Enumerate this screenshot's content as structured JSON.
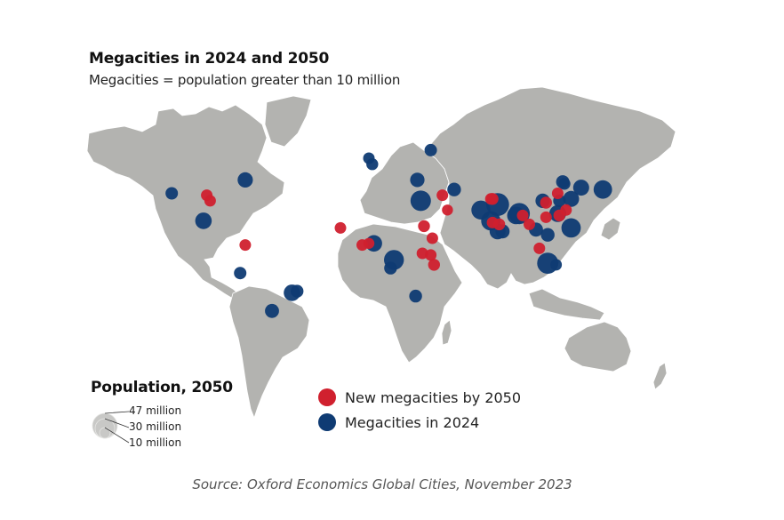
{
  "title": "Megacities in 2024 and 2050",
  "subtitle": "Megacities = population greater than 10 million",
  "colors": {
    "land": "#b3b3b0",
    "border": "#ffffff",
    "new_2050": "#d0202e",
    "existing_2024": "#0f3b73",
    "legend_circle": "#c8c8c6"
  },
  "size_legend": {
    "title": "Population, 2050",
    "labels": [
      "47 million",
      "30 million",
      "10 million"
    ]
  },
  "color_legend": [
    {
      "label": "New megacities by 2050",
      "key": "new_2050"
    },
    {
      "label": "Megacities in 2024",
      "key": "existing_2024"
    }
  ],
  "source": "Source: Oxford Economics Global Cities, November 2023",
  "chart_data": {
    "type": "scatter",
    "title": "Megacities in 2024 and 2050",
    "subtitle": "Megacities = population greater than 10 million",
    "legend": [
      "New megacities by 2050",
      "Megacities in 2024"
    ],
    "size_legend_millions": [
      47,
      30,
      10
    ],
    "points": [
      {
        "region": "North America - Los Angeles",
        "lon": -118,
        "lat": 34,
        "pop_2050_m": 13,
        "category": "existing_2024"
      },
      {
        "region": "North America - New York",
        "lon": -74,
        "lat": 41,
        "pop_2050_m": 20,
        "category": "existing_2024"
      },
      {
        "region": "North America - Dallas",
        "lon": -97,
        "lat": 33,
        "pop_2050_m": 11,
        "category": "new_2050"
      },
      {
        "region": "North America - Houston",
        "lon": -95,
        "lat": 30,
        "pop_2050_m": 11,
        "category": "new_2050"
      },
      {
        "region": "Latin America - Mexico City",
        "lon": -99,
        "lat": 19,
        "pop_2050_m": 24,
        "category": "existing_2024"
      },
      {
        "region": "Latin America - Bogota",
        "lon": -74,
        "lat": 5,
        "pop_2050_m": 11,
        "category": "new_2050"
      },
      {
        "region": "Latin America - Lima",
        "lon": -77,
        "lat": -12,
        "pop_2050_m": 13,
        "category": "existing_2024"
      },
      {
        "region": "Latin America - Rio de Janeiro",
        "lon": -43,
        "lat": -23,
        "pop_2050_m": 14,
        "category": "existing_2024"
      },
      {
        "region": "Latin America - Sao Paulo",
        "lon": -46,
        "lat": -24,
        "pop_2050_m": 24,
        "category": "existing_2024"
      },
      {
        "region": "Latin America - Buenos Aires",
        "lon": -58,
        "lat": -35,
        "pop_2050_m": 17,
        "category": "existing_2024"
      },
      {
        "region": "Europe - London",
        "lon": 0,
        "lat": 52,
        "pop_2050_m": 11,
        "category": "existing_2024"
      },
      {
        "region": "Europe - Paris",
        "lon": 2,
        "lat": 49,
        "pop_2050_m": 12,
        "category": "existing_2024"
      },
      {
        "region": "Europe - Moscow",
        "lon": 37,
        "lat": 56,
        "pop_2050_m": 13,
        "category": "existing_2024"
      },
      {
        "region": "Europe - Istanbul",
        "lon": 29,
        "lat": 41,
        "pop_2050_m": 18,
        "category": "existing_2024"
      },
      {
        "region": "Middle East - Cairo",
        "lon": 31,
        "lat": 30,
        "pop_2050_m": 37,
        "category": "existing_2024"
      },
      {
        "region": "Middle East - Baghdad",
        "lon": 44,
        "lat": 33,
        "pop_2050_m": 11,
        "category": "new_2050"
      },
      {
        "region": "Middle East - Riyadh",
        "lon": 47,
        "lat": 25,
        "pop_2050_m": 10,
        "category": "new_2050"
      },
      {
        "region": "Middle East - Tehran",
        "lon": 51,
        "lat": 36,
        "pop_2050_m": 16,
        "category": "existing_2024"
      },
      {
        "region": "Africa - Khartoum",
        "lon": 33,
        "lat": 16,
        "pop_2050_m": 12,
        "category": "new_2050"
      },
      {
        "region": "Africa - Dakar",
        "lon": -17,
        "lat": 15,
        "pop_2050_m": 11,
        "category": "new_2050"
      },
      {
        "region": "Africa - Abidjan",
        "lon": -4,
        "lat": 5,
        "pop_2050_m": 11,
        "category": "new_2050"
      },
      {
        "region": "Africa - Accra",
        "lon": 0,
        "lat": 6,
        "pop_2050_m": 10,
        "category": "new_2050"
      },
      {
        "region": "Africa - Lagos",
        "lon": 3,
        "lat": 6,
        "pop_2050_m": 24,
        "category": "existing_2024"
      },
      {
        "region": "Africa - Kinshasa",
        "lon": 15,
        "lat": -4,
        "pop_2050_m": 35,
        "category": "existing_2024"
      },
      {
        "region": "Africa - Luanda",
        "lon": 13,
        "lat": -9,
        "pop_2050_m": 14,
        "category": "existing_2024"
      },
      {
        "region": "Africa - Kampala",
        "lon": 32,
        "lat": 0,
        "pop_2050_m": 11,
        "category": "new_2050"
      },
      {
        "region": "Africa - Nairobi",
        "lon": 37,
        "lat": -1,
        "pop_2050_m": 11,
        "category": "new_2050"
      },
      {
        "region": "Africa - Dar es Salaam",
        "lon": 39,
        "lat": -7,
        "pop_2050_m": 12,
        "category": "new_2050"
      },
      {
        "region": "Africa - Addis Ababa",
        "lon": 38,
        "lat": 9,
        "pop_2050_m": 11,
        "category": "new_2050"
      },
      {
        "region": "Africa - Johannesburg",
        "lon": 28,
        "lat": -26,
        "pop_2050_m": 14,
        "category": "existing_2024"
      },
      {
        "region": "South Asia - Lahore",
        "lon": 74,
        "lat": 31,
        "pop_2050_m": 12,
        "category": "new_2050"
      },
      {
        "region": "South Asia - Faisalabad",
        "lon": 73,
        "lat": 31,
        "pop_2050_m": 11,
        "category": "new_2050"
      },
      {
        "region": "South Asia - Delhi",
        "lon": 77,
        "lat": 28,
        "pop_2050_m": 47,
        "category": "existing_2024"
      },
      {
        "region": "South Asia - Karachi",
        "lon": 67,
        "lat": 25,
        "pop_2050_m": 32,
        "category": "existing_2024"
      },
      {
        "region": "South Asia - Mumbai",
        "lon": 73,
        "lat": 19,
        "pop_2050_m": 33,
        "category": "existing_2024"
      },
      {
        "region": "South Asia - Pune",
        "lon": 74,
        "lat": 18,
        "pop_2050_m": 11,
        "category": "new_2050"
      },
      {
        "region": "South Asia - Hyderabad",
        "lon": 78,
        "lat": 17,
        "pop_2050_m": 12,
        "category": "new_2050"
      },
      {
        "region": "South Asia - Bangalore",
        "lon": 77,
        "lat": 13,
        "pop_2050_m": 22,
        "category": "existing_2024"
      },
      {
        "region": "South Asia - Chennai",
        "lon": 80,
        "lat": 13,
        "pop_2050_m": 17,
        "category": "existing_2024"
      },
      {
        "region": "South Asia - Kolkata",
        "lon": 88,
        "lat": 22,
        "pop_2050_m": 27,
        "category": "existing_2024"
      },
      {
        "region": "South Asia - Dhaka",
        "lon": 90,
        "lat": 23,
        "pop_2050_m": 40,
        "category": "existing_2024"
      },
      {
        "region": "South Asia - Chittagong",
        "lon": 92,
        "lat": 22,
        "pop_2050_m": 11,
        "category": "new_2050"
      },
      {
        "region": "Southeast Asia - Yangon",
        "lon": 96,
        "lat": 17,
        "pop_2050_m": 11,
        "category": "new_2050"
      },
      {
        "region": "Southeast Asia - Bangkok",
        "lon": 100,
        "lat": 14,
        "pop_2050_m": 17,
        "category": "existing_2024"
      },
      {
        "region": "Southeast Asia - Ho Chi Minh City",
        "lon": 107,
        "lat": 11,
        "pop_2050_m": 16,
        "category": "existing_2024"
      },
      {
        "region": "Southeast Asia - Hanoi",
        "lon": 106,
        "lat": 21,
        "pop_2050_m": 11,
        "category": "new_2050"
      },
      {
        "region": "Southeast Asia - Manila",
        "lon": 121,
        "lat": 15,
        "pop_2050_m": 33,
        "category": "existing_2024"
      },
      {
        "region": "Southeast Asia - Kuala Lumpur",
        "lon": 102,
        "lat": 3,
        "pop_2050_m": 11,
        "category": "new_2050"
      },
      {
        "region": "Southeast Asia - Jakarta",
        "lon": 107,
        "lat": -6,
        "pop_2050_m": 40,
        "category": "existing_2024"
      },
      {
        "region": "Southeast Asia - Surabaya",
        "lon": 112,
        "lat": -7,
        "pop_2050_m": 11,
        "category": "existing_2024"
      },
      {
        "region": "East Asia - Beijing",
        "lon": 116,
        "lat": 40,
        "pop_2050_m": 15,
        "category": "existing_2024"
      },
      {
        "region": "East Asia - Tianjin",
        "lon": 117,
        "lat": 39,
        "pop_2050_m": 12,
        "category": "existing_2024"
      },
      {
        "region": "East Asia - Zhengzhou",
        "lon": 113,
        "lat": 34,
        "pop_2050_m": 11,
        "category": "new_2050"
      },
      {
        "region": "East Asia - Chengdu",
        "lon": 104,
        "lat": 30,
        "pop_2050_m": 18,
        "category": "existing_2024"
      },
      {
        "region": "East Asia - Chongqing",
        "lon": 106,
        "lat": 29,
        "pop_2050_m": 12,
        "category": "new_2050"
      },
      {
        "region": "East Asia - Wuhan",
        "lon": 114,
        "lat": 30,
        "pop_2050_m": 13,
        "category": "existing_2024"
      },
      {
        "region": "East Asia - Shanghai",
        "lon": 121,
        "lat": 31,
        "pop_2050_m": 22,
        "category": "existing_2024"
      },
      {
        "region": "East Asia - Seoul",
        "lon": 127,
        "lat": 37,
        "pop_2050_m": 22,
        "category": "existing_2024"
      },
      {
        "region": "East Asia - Tokyo",
        "lon": 140,
        "lat": 36,
        "pop_2050_m": 30,
        "category": "existing_2024"
      },
      {
        "region": "East Asia - Guangzhou",
        "lon": 113,
        "lat": 23,
        "pop_2050_m": 25,
        "category": "existing_2024"
      },
      {
        "region": "East Asia - Shenzhen",
        "lon": 114,
        "lat": 22,
        "pop_2050_m": 12,
        "category": "new_2050"
      },
      {
        "region": "East Asia - Xiamen",
        "lon": 118,
        "lat": 25,
        "pop_2050_m": 11,
        "category": "new_2050"
      }
    ]
  }
}
